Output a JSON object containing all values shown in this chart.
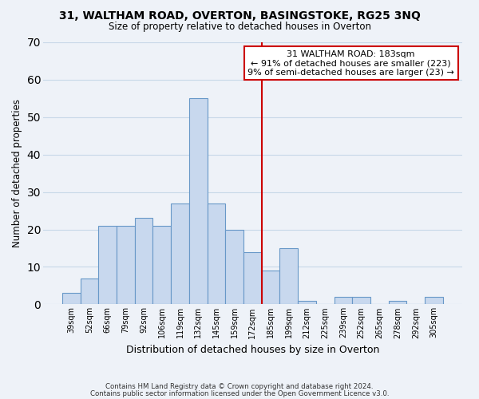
{
  "title": "31, WALTHAM ROAD, OVERTON, BASINGSTOKE, RG25 3NQ",
  "subtitle": "Size of property relative to detached houses in Overton",
  "xlabel": "Distribution of detached houses by size in Overton",
  "ylabel": "Number of detached properties",
  "bar_labels": [
    "39sqm",
    "52sqm",
    "66sqm",
    "79sqm",
    "92sqm",
    "106sqm",
    "119sqm",
    "132sqm",
    "145sqm",
    "159sqm",
    "172sqm",
    "185sqm",
    "199sqm",
    "212sqm",
    "225sqm",
    "239sqm",
    "252sqm",
    "265sqm",
    "278sqm",
    "292sqm",
    "305sqm"
  ],
  "bar_values": [
    3,
    7,
    21,
    21,
    23,
    21,
    27,
    55,
    27,
    20,
    14,
    9,
    15,
    1,
    0,
    2,
    2,
    0,
    1,
    0,
    2
  ],
  "bar_color": "#c8d8ee",
  "bar_edge_color": "#6898c8",
  "vline_color": "#cc0000",
  "ylim": [
    0,
    70
  ],
  "yticks": [
    0,
    10,
    20,
    30,
    40,
    50,
    60,
    70
  ],
  "annotation_title": "31 WALTHAM ROAD: 183sqm",
  "annotation_line1": "← 91% of detached houses are smaller (223)",
  "annotation_line2": "9% of semi-detached houses are larger (23) →",
  "annotation_box_color": "#ffffff",
  "annotation_box_edge": "#cc0000",
  "footer1": "Contains HM Land Registry data © Crown copyright and database right 2024.",
  "footer2": "Contains public sector information licensed under the Open Government Licence v3.0.",
  "grid_color": "#c8d8e8",
  "background_color": "#eef2f8"
}
